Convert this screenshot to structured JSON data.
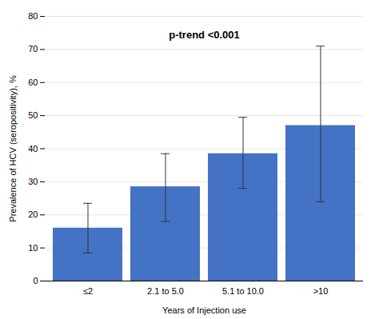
{
  "chart_data": {
    "type": "bar",
    "categories": [
      "≤2",
      "2.1 to 5.0",
      "5.1 to 10.0",
      ">10"
    ],
    "values": [
      16.0,
      28.5,
      38.5,
      47.0
    ],
    "error_lower": [
      7.5,
      10.5,
      10.5,
      23.0
    ],
    "error_upper": [
      7.5,
      10.0,
      11.0,
      24.0
    ],
    "color": "#4472C4",
    "xlabel": "Years of Injection use",
    "ylabel": "Prevalence of HCV (seropositivity), %",
    "annotation": "p-trend <0.001",
    "ylim": [
      0,
      80
    ],
    "yticks": [
      0,
      10,
      20,
      30,
      40,
      50,
      60,
      70,
      80
    ],
    "grid": true
  }
}
